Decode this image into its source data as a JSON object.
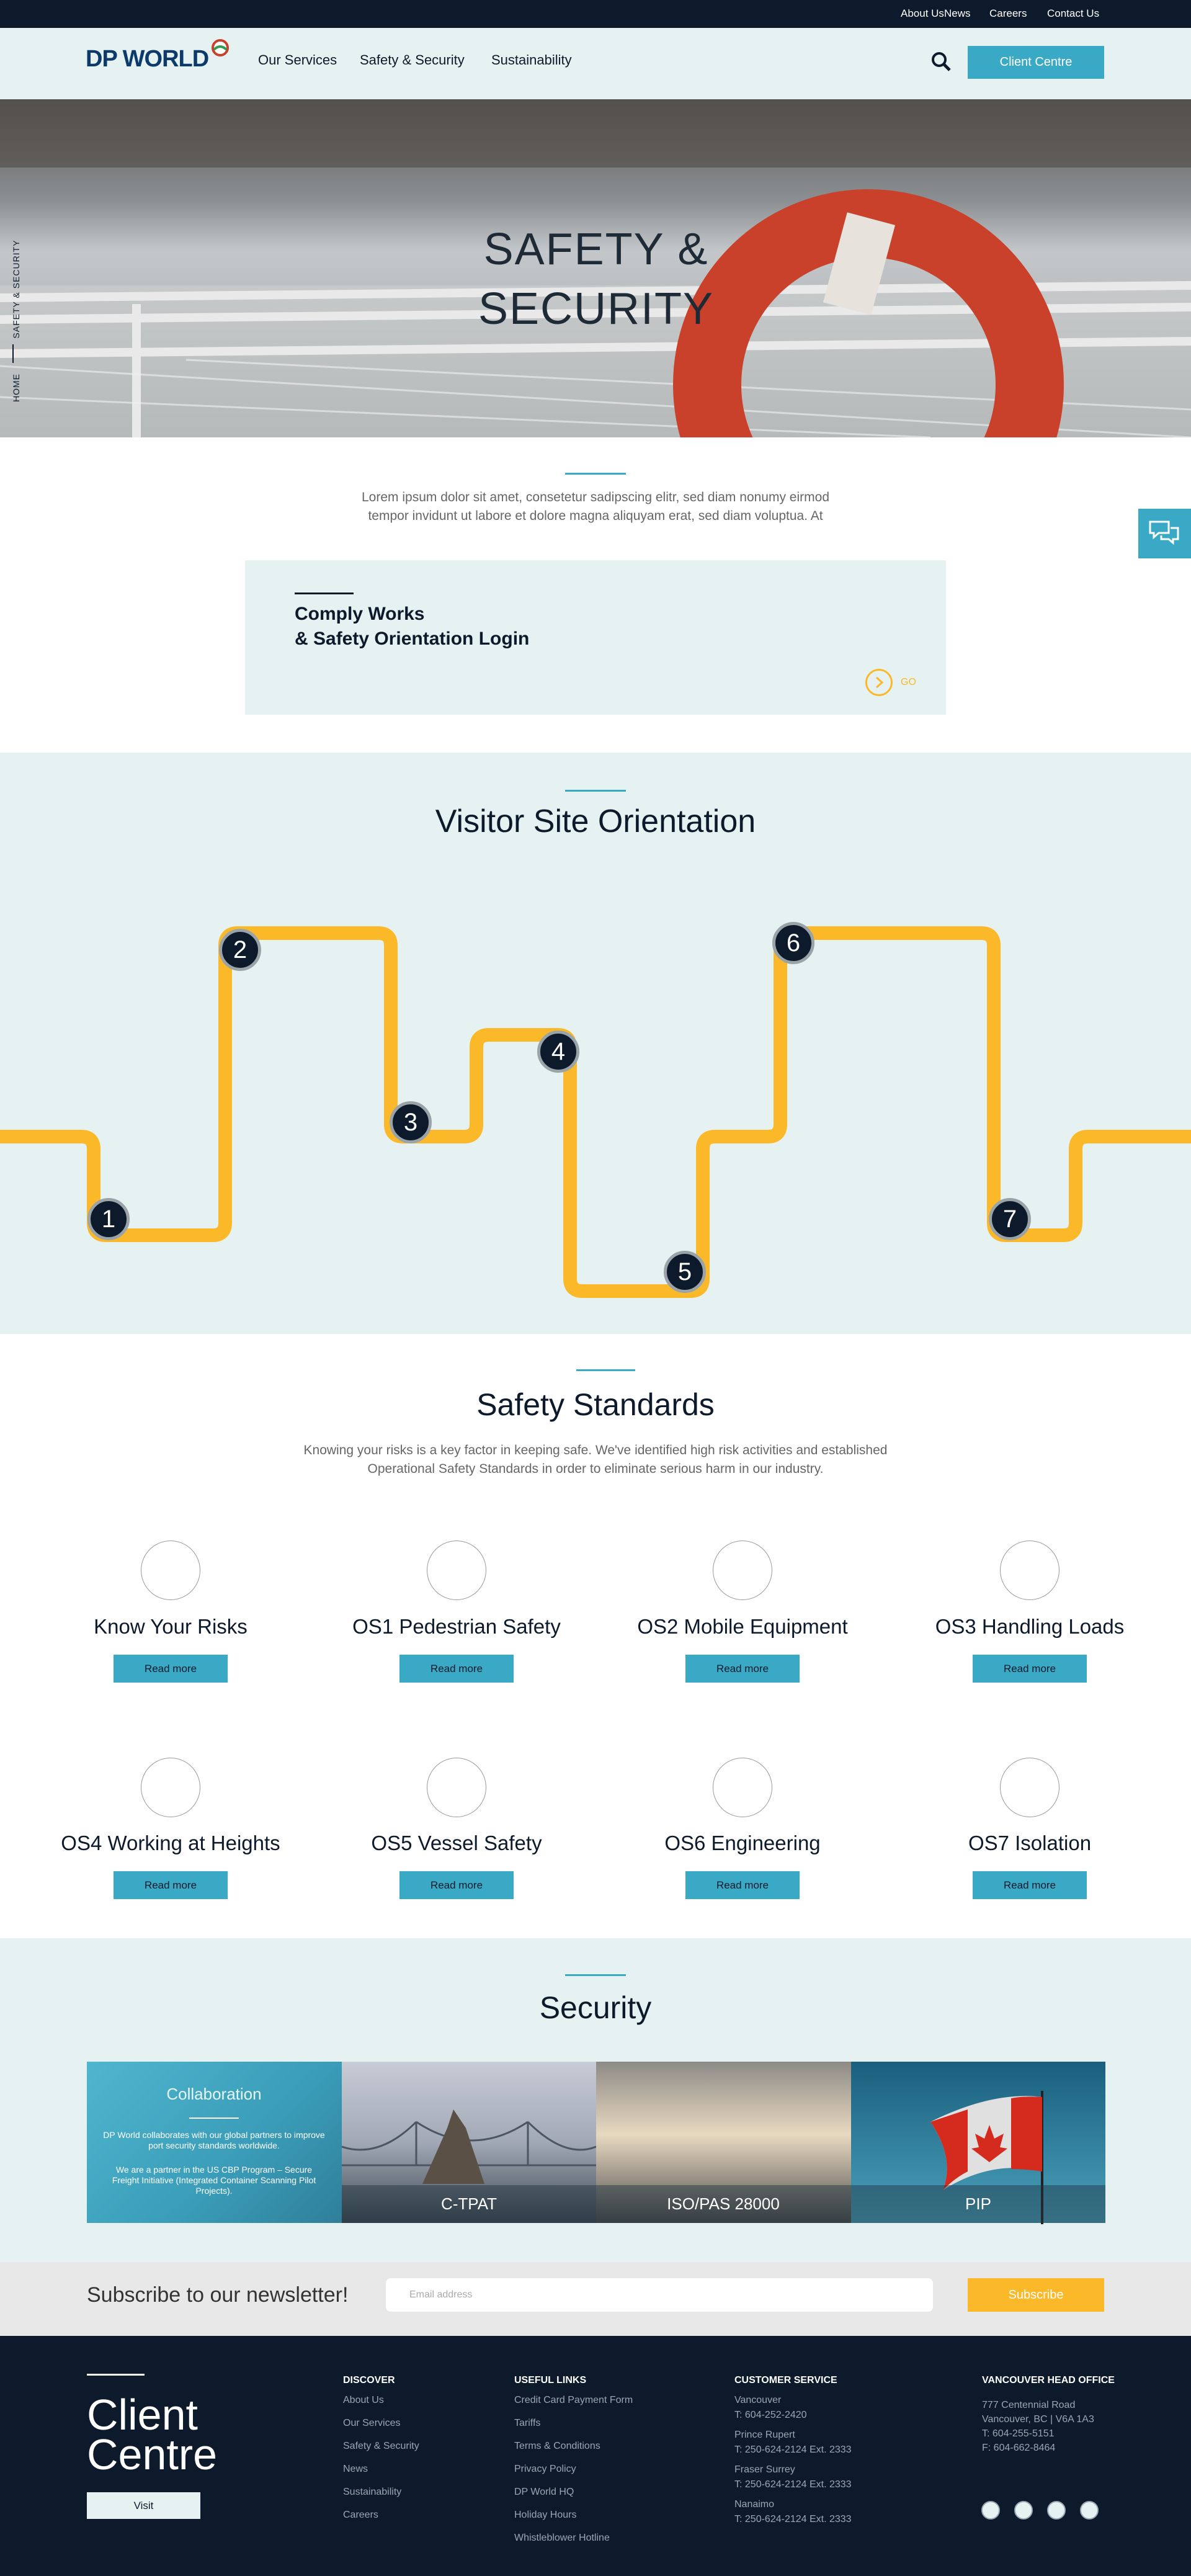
{
  "top_links": [
    "About Us",
    "News",
    "Careers",
    "Contact Us"
  ],
  "header": {
    "logo": "DP WORLD",
    "nav": [
      "Our Services",
      "Safety & Security",
      "Sustainability"
    ],
    "button": "Client Centre"
  },
  "hero": {
    "title_lines": [
      "SAFETY &",
      "SECURITY"
    ],
    "breadcrumb": [
      "HOME",
      "SAFETY & SECURITY"
    ]
  },
  "intro": {
    "text_lines": [
      "Lorem ipsum dolor sit amet, consetetur sadipscing elitr, sed diam nonumy eirmod",
      "tempor invidunt ut labore et dolore magna aliquyam erat, sed diam voluptua. At"
    ]
  },
  "comply": {
    "title_lines": [
      "Comply Works",
      "& Safety Orientation Login"
    ],
    "link": "GO"
  },
  "visitor": {
    "title": "Visitor Site Orientation",
    "steps": [
      "1",
      "2",
      "3",
      "4",
      "5",
      "6",
      "7"
    ]
  },
  "standards": {
    "title": "Safety Standards",
    "text_lines": [
      "Knowing your risks is a key factor in keeping safe. We've identified high risk activities and established",
      "Operational Safety Standards in order to eliminate serious harm in our industry."
    ],
    "items": [
      {
        "title": "Know Your Risks",
        "button": "Read more"
      },
      {
        "title": "OS1 Pedestrian Safety",
        "button": "Read more"
      },
      {
        "title": "OS2 Mobile Equipment",
        "button": "Read more"
      },
      {
        "title": "OS3 Handling Loads",
        "button": "Read more"
      },
      {
        "title": "OS4 Working at Heights",
        "button": "Read more"
      },
      {
        "title": "OS5 Vessel Safety",
        "button": "Read more"
      },
      {
        "title": "OS6 Engineering",
        "button": "Read more"
      },
      {
        "title": "OS7 Isolation",
        "button": "Read more"
      }
    ]
  },
  "security": {
    "title": "Security",
    "tiles": [
      {
        "title": "Collaboration",
        "paragraphs": [
          "DP World collaborates with our global partners to improve port security standards worldwide.",
          "We are a partner in the US CBP Program – Secure Freight Initiative (Integrated Container Scanning Pilot Projects)."
        ]
      },
      {
        "title": "C-TPAT"
      },
      {
        "title": "ISO/PAS 28000"
      },
      {
        "title": "PIP"
      }
    ]
  },
  "newsletter": {
    "title": "Subscribe to our newsletter!",
    "placeholder": "Email address",
    "button": "Subscribe"
  },
  "footer": {
    "client_lines": [
      "Client",
      "Centre"
    ],
    "visit": "Visit",
    "discover": {
      "heading": "DISCOVER",
      "items": [
        "About Us",
        "Our Services",
        "Safety & Security",
        "News",
        "Sustainability",
        "Careers"
      ]
    },
    "useful": {
      "heading": "USEFUL LINKS",
      "items": [
        "Credit Card Payment Form",
        "Tariffs",
        "Terms & Conditions",
        "Privacy Policy",
        "DP World HQ",
        "Holiday Hours",
        "Whistleblower Hotline"
      ]
    },
    "service": {
      "heading": "CUSTOMER SERVICE",
      "entries": [
        {
          "name": "Vancouver",
          "phone": "T: 604-252-2420"
        },
        {
          "name": "Prince Rupert",
          "phone": "T: 250-624-2124 Ext. 2333"
        },
        {
          "name": "Fraser Surrey",
          "phone": "T: 250-624-2124 Ext. 2333"
        },
        {
          "name": "Nanaimo",
          "phone": "T: 250-624-2124 Ext. 2333"
        }
      ]
    },
    "office": {
      "heading": "VANCOUVER HEAD OFFICE",
      "lines": [
        "777 Centennial Road",
        "Vancouver, BC | V6A 1A3",
        "T: 604-255-5151",
        "F: 604-662-8464"
      ]
    }
  }
}
